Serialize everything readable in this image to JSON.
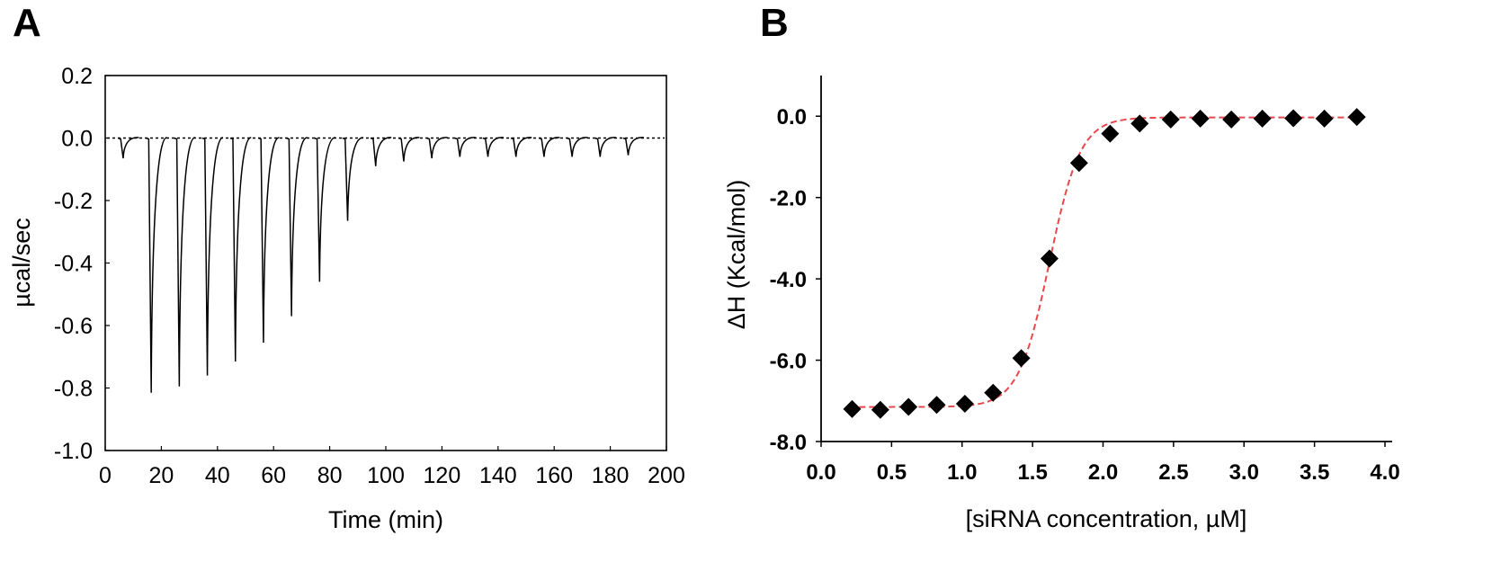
{
  "panels": {
    "a_letter": "A",
    "b_letter": "B"
  },
  "chart_data": [
    {
      "type": "line",
      "panel": "A",
      "xlabel": "Time (min)",
      "ylabel": "µcal/sec",
      "xlim": [
        0,
        200
      ],
      "ylim": [
        -1.0,
        0.2
      ],
      "xticks": [
        0,
        20,
        40,
        60,
        80,
        100,
        120,
        140,
        160,
        180,
        200
      ],
      "yticks": [
        0.2,
        0.0,
        -0.2,
        -0.4,
        -0.6,
        -0.8,
        -1.0
      ],
      "xtick_labels": [
        "0",
        "20",
        "40",
        "60",
        "80",
        "100",
        "120",
        "140",
        "160",
        "180",
        "200"
      ],
      "ytick_labels": [
        "0.2",
        "0.0",
        "-0.2",
        "-0.4",
        "-0.6",
        "-0.8",
        "-1.0"
      ],
      "baseline": 0.0,
      "line_color": "#000000",
      "series": [
        {
          "injection_time": [
            5.5,
            15.5,
            25.5,
            35.5,
            45.5,
            55.5,
            65.5,
            75.5,
            85.5,
            95.5,
            105.5,
            115.5,
            125.5,
            135.5,
            145.5,
            155.5,
            165.5,
            175.5,
            185.5
          ],
          "peak_value": [
            -0.065,
            -0.815,
            -0.795,
            -0.76,
            -0.715,
            -0.655,
            -0.57,
            -0.46,
            -0.265,
            -0.09,
            -0.075,
            -0.065,
            -0.06,
            -0.06,
            -0.06,
            -0.06,
            -0.06,
            -0.06,
            -0.055
          ]
        }
      ],
      "grid": false
    },
    {
      "type": "scatter",
      "panel": "B",
      "xlabel": "[siRNA concentration, µM]",
      "ylabel": "ΔH (Kcal/mol)",
      "xlim": [
        0,
        4.0
      ],
      "ylim": [
        -8.0,
        1.0
      ],
      "xticks": [
        0,
        0.5,
        1.0,
        1.5,
        2.0,
        2.5,
        3.0,
        3.5,
        4.0
      ],
      "yticks": [
        0,
        -2,
        -4,
        -6,
        -8
      ],
      "xtick_labels": [
        "0.0",
        "0.5",
        "1.0",
        "1.5",
        "2.0",
        "2.5",
        "3.0",
        "3.5",
        "4.0"
      ],
      "ytick_labels": [
        "0.0",
        "-2.0",
        "-4.0",
        "-6.0",
        "-8.0"
      ],
      "marker": "diamond",
      "marker_color": "#000000",
      "fit_color": "#e8484d",
      "series": [
        {
          "x": [
            0.22,
            0.42,
            0.62,
            0.82,
            1.02,
            1.22,
            1.42,
            1.62,
            1.83,
            2.05,
            2.26,
            2.48,
            2.69,
            2.91,
            3.13,
            3.35,
            3.57,
            3.8
          ],
          "y": [
            -7.2,
            -7.22,
            -7.15,
            -7.1,
            -7.07,
            -6.8,
            -5.95,
            -3.5,
            -1.15,
            -0.43,
            -0.18,
            -0.08,
            -0.06,
            -0.08,
            -0.06,
            -0.05,
            -0.06,
            -0.02
          ]
        }
      ],
      "fit": {
        "style": "dashed",
        "model": "sigmoid",
        "top": -0.03,
        "bottom": -7.15,
        "midpoint": 1.62,
        "slope": 0.11
      },
      "grid": false
    }
  ]
}
